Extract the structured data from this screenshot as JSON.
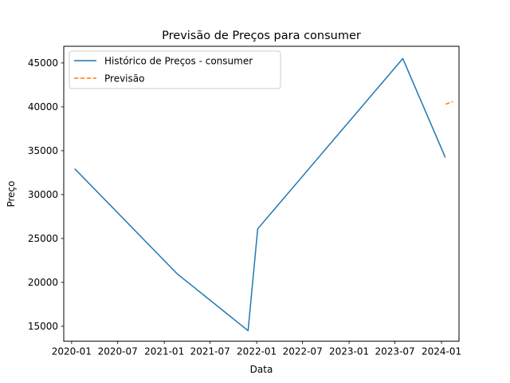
{
  "chart_data": {
    "type": "line",
    "title": "Previsão de Preços para consumer",
    "xlabel": "Data",
    "ylabel": "Preço",
    "x_tick_labels": [
      "2020-01",
      "2020-07",
      "2021-01",
      "2021-07",
      "2022-01",
      "2022-07",
      "2023-01",
      "2023-07",
      "2024-01"
    ],
    "y_tick_labels": [
      "15000",
      "20000",
      "25000",
      "30000",
      "35000",
      "40000",
      "45000"
    ],
    "ylim": [
      13300,
      46900
    ],
    "xlim": [
      "2019-12-01",
      "2024-03-10"
    ],
    "grid": false,
    "legend_position": "upper-left",
    "series": [
      {
        "name": "Histórico de Preços - consumer",
        "style": "solid",
        "color": "#1f77b4",
        "x": [
          "2020-01-15",
          "2021-02-20",
          "2021-11-28",
          "2022-01-05",
          "2023-08-01",
          "2024-01-15"
        ],
        "y": [
          32900,
          21000,
          14500,
          26100,
          45500,
          34300
        ]
      },
      {
        "name": "Previsão",
        "style": "dashed",
        "color": "#ff7f0e",
        "x": [
          "2024-01-17",
          "2024-02-15"
        ],
        "y": [
          40300,
          40600
        ]
      }
    ]
  }
}
